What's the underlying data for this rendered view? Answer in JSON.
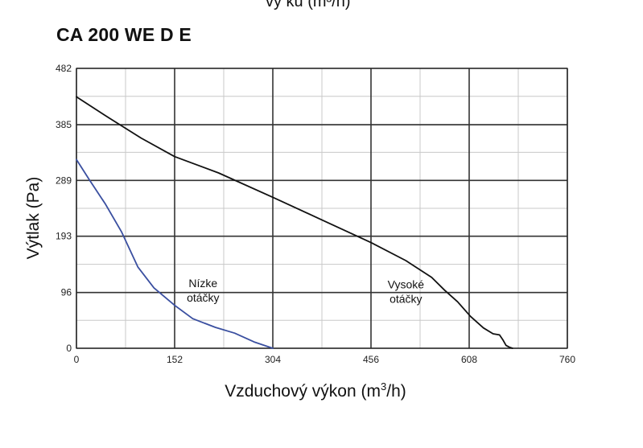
{
  "header": {
    "top_fragment": "vy  ku (m³/h)"
  },
  "chart_data": {
    "type": "line",
    "title": "CA 200 WE D E",
    "xlabel": "Vzduchový výkon (m",
    "xlabel_sup": "3",
    "xlabel_end": "/h)",
    "ylabel": "Výtlak (Pa)",
    "xlim": [
      0,
      760
    ],
    "ylim": [
      0,
      482
    ],
    "x_ticks": [
      0,
      152,
      304,
      456,
      608,
      760
    ],
    "y_ticks": [
      0,
      96,
      193,
      289,
      385,
      482
    ],
    "x_minor_step": 76,
    "y_minor_step": 48.2,
    "grid": true,
    "series": [
      {
        "name_lines": [
          "Nízke",
          "otáčky"
        ],
        "color": "#3a4fa0",
        "label_x": 196,
        "label_y": 105,
        "x": [
          0,
          20,
          45,
          70,
          95,
          120,
          152,
          180,
          215,
          245,
          275,
          304
        ],
        "y": [
          325,
          290,
          248,
          200,
          140,
          104,
          74,
          51,
          36,
          26,
          11,
          0
        ]
      },
      {
        "name_lines": [
          "Vysoké",
          "otáčky"
        ],
        "color": "#111111",
        "label_x": 510,
        "label_y": 103,
        "x": [
          0,
          50,
          100,
          152,
          220,
          304,
          380,
          456,
          510,
          550,
          570,
          590,
          610,
          630,
          645,
          655,
          660,
          665,
          670,
          675
        ],
        "y": [
          433,
          397,
          362,
          330,
          302,
          260,
          221,
          182,
          151,
          122,
          100,
          80,
          55,
          35,
          25,
          23,
          15,
          5,
          2,
          0
        ]
      }
    ]
  }
}
